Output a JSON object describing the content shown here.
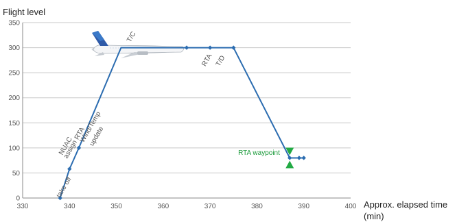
{
  "chart_data": {
    "type": "line",
    "ylabel": "Flight level",
    "xlabel": "Approx. elapsed time",
    "xlabel_unit": "(min)",
    "xlim": [
      330,
      400
    ],
    "ylim": [
      0,
      350
    ],
    "xticks": [
      330,
      340,
      350,
      360,
      370,
      380,
      390,
      400
    ],
    "yticks": [
      0,
      50,
      100,
      150,
      200,
      250,
      300,
      350
    ],
    "grid": "horizontal",
    "series": [
      {
        "color": "#2b6cb0",
        "points": [
          {
            "x": 338,
            "y": 0
          },
          {
            "x": 340,
            "y": 58
          },
          {
            "x": 342,
            "y": 100
          },
          {
            "x": 351,
            "y": 300
          },
          {
            "x": 360,
            "y": 300
          },
          {
            "x": 365,
            "y": 300
          },
          {
            "x": 370,
            "y": 300
          },
          {
            "x": 375,
            "y": 300
          },
          {
            "x": 387,
            "y": 80
          },
          {
            "x": 389,
            "y": 80
          },
          {
            "x": 390,
            "y": 80
          }
        ],
        "markers": [
          {
            "x": 338,
            "y": 0
          },
          {
            "x": 340,
            "y": 58
          },
          {
            "x": 342,
            "y": 100
          },
          {
            "x": 365,
            "y": 300
          },
          {
            "x": 370,
            "y": 300
          },
          {
            "x": 375,
            "y": 300
          },
          {
            "x": 387,
            "y": 80
          },
          {
            "x": 389,
            "y": 80
          },
          {
            "x": 390,
            "y": 80
          }
        ]
      }
    ],
    "annotations": [
      {
        "text": "take off",
        "x": 338,
        "y": 0,
        "rotation": -60,
        "color": "#555555"
      },
      {
        "text": "NUAC",
        "x": 338.5,
        "y": 85,
        "rotation": -60,
        "color": "#555555"
      },
      {
        "text": "assign RTA",
        "x": 339.5,
        "y": 78,
        "rotation": -60,
        "color": "#555555"
      },
      {
        "text": "Wind/Temp",
        "x": 343,
        "y": 110,
        "rotation": -60,
        "color": "#555555"
      },
      {
        "text": "update",
        "x": 345,
        "y": 103,
        "rotation": -60,
        "color": "#555555"
      },
      {
        "text": "T/C",
        "x": 353,
        "y": 310,
        "rotation": -60,
        "color": "#555555"
      },
      {
        "text": "RTA",
        "x": 369,
        "y": 262,
        "rotation": -60,
        "color": "#555555"
      },
      {
        "text": "T/D",
        "x": 372,
        "y": 262,
        "rotation": -60,
        "color": "#555555"
      },
      {
        "text": "RTA waypoint",
        "x": 376,
        "y": 86,
        "rotation": 0,
        "color": "#1a9a3a"
      }
    ],
    "waypoint_marker": {
      "x": 387,
      "y": 80,
      "color": "#22aa44"
    }
  }
}
